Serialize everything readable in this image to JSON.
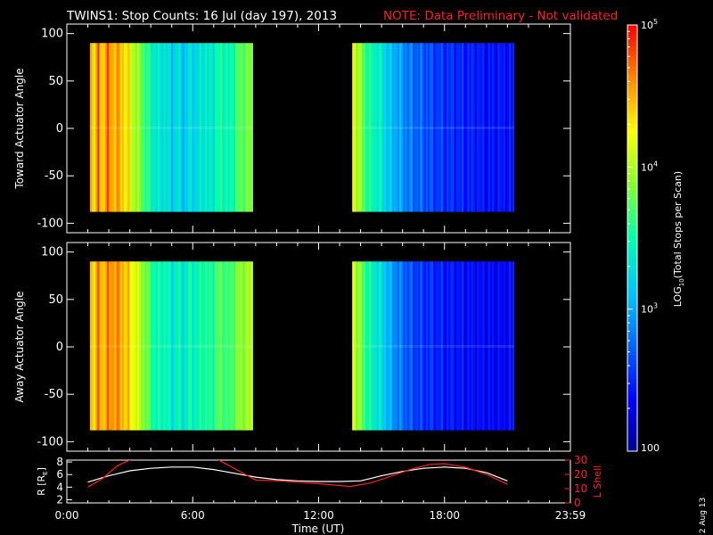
{
  "title": "TWINS1: Stop Counts: 16 Jul (day 197), 2013",
  "note": "NOTE: Data Preliminary - Not validated",
  "date_stamp": "2 Aug 13",
  "colors": {
    "background": "#000000",
    "foreground": "#ffffff",
    "note": "#ff2020",
    "lshell": "#ff2020",
    "radius": "#ffffff"
  },
  "colorbar": {
    "label": "LOG10(Total Stops per Scan)",
    "label_main": "LOG",
    "label_sub": "10",
    "label_rest": "(Total Stops per Scan)",
    "tick_labels": [
      "100",
      "10",
      "3",
      "10",
      "4",
      "10",
      "5"
    ],
    "ticks": [
      {
        "base": "100",
        "exp": ""
      },
      {
        "base": "10",
        "exp": "3"
      },
      {
        "base": "10",
        "exp": "4"
      },
      {
        "base": "10",
        "exp": "5"
      }
    ],
    "log_range": [
      2,
      5
    ],
    "colormap": "rainbow (blue-cyan-green-yellow-red)"
  },
  "xaxis": {
    "label": "Time (UT)",
    "tick_labels": [
      "0:00",
      "6:00",
      "12:00",
      "18:00",
      "23:59"
    ],
    "range_hours": [
      0,
      24
    ]
  },
  "chart_data": [
    {
      "type": "heatmap",
      "name": "toward",
      "ylabel": "Toward Actuator Angle",
      "ylim": [
        -110,
        110
      ],
      "yticks": [
        "100",
        "50",
        "0",
        "-50",
        "-100"
      ],
      "angle_range": [
        -88,
        90
      ],
      "segments": [
        {
          "start_hour": 1.1,
          "end_hour": 8.85,
          "profile": [
            [
              1.1,
              4.6
            ],
            [
              1.35,
              4.2
            ],
            [
              1.5,
              4.8
            ],
            [
              1.65,
              4.3
            ],
            [
              1.9,
              4.7
            ],
            [
              2.2,
              4.5
            ],
            [
              2.5,
              4.5
            ],
            [
              2.9,
              4.3
            ],
            [
              3.2,
              4.0
            ],
            [
              3.5,
              3.85
            ],
            [
              3.8,
              3.6
            ],
            [
              4.1,
              3.4
            ],
            [
              4.4,
              3.3
            ],
            [
              4.7,
              3.35
            ],
            [
              5.0,
              3.15
            ],
            [
              5.3,
              3.3
            ],
            [
              5.6,
              3.1
            ],
            [
              5.9,
              3.3
            ],
            [
              6.2,
              3.2
            ],
            [
              6.5,
              3.4
            ],
            [
              6.8,
              3.3
            ],
            [
              7.1,
              3.45
            ],
            [
              7.4,
              3.55
            ],
            [
              7.7,
              3.4
            ],
            [
              8.0,
              3.6
            ],
            [
              8.3,
              3.75
            ],
            [
              8.6,
              3.8
            ],
            [
              8.85,
              3.85
            ]
          ]
        },
        {
          "start_hour": 13.6,
          "end_hour": 21.3,
          "profile": [
            [
              13.6,
              4.4
            ],
            [
              13.8,
              4.0
            ],
            [
              14.0,
              3.9
            ],
            [
              14.3,
              3.6
            ],
            [
              14.6,
              3.45
            ],
            [
              15.0,
              3.35
            ],
            [
              15.4,
              3.1
            ],
            [
              15.8,
              3.0
            ],
            [
              16.2,
              2.85
            ],
            [
              16.6,
              2.75
            ],
            [
              17.0,
              2.7
            ],
            [
              17.5,
              2.6
            ],
            [
              18.0,
              2.55
            ],
            [
              18.5,
              2.5
            ],
            [
              19.0,
              2.48
            ],
            [
              19.5,
              2.45
            ],
            [
              20.0,
              2.42
            ],
            [
              20.5,
              2.42
            ],
            [
              21.0,
              2.4
            ],
            [
              21.3,
              2.45
            ]
          ]
        }
      ]
    },
    {
      "type": "heatmap",
      "name": "away",
      "ylabel": "Away Actuator Angle",
      "ylim": [
        -110,
        110
      ],
      "yticks": [
        "100",
        "50",
        "0",
        "-50",
        "-100"
      ],
      "angle_range": [
        -88,
        90
      ],
      "segments": [
        {
          "start_hour": 1.1,
          "end_hour": 8.85,
          "profile": [
            [
              1.1,
              4.5
            ],
            [
              1.35,
              4.3
            ],
            [
              1.5,
              4.7
            ],
            [
              1.65,
              4.4
            ],
            [
              1.9,
              4.6
            ],
            [
              2.2,
              4.6
            ],
            [
              2.5,
              4.55
            ],
            [
              2.9,
              4.4
            ],
            [
              3.2,
              4.2
            ],
            [
              3.5,
              4.0
            ],
            [
              3.8,
              3.8
            ],
            [
              4.1,
              3.55
            ],
            [
              4.4,
              3.45
            ],
            [
              4.7,
              3.5
            ],
            [
              5.0,
              3.3
            ],
            [
              5.3,
              3.45
            ],
            [
              5.6,
              3.3
            ],
            [
              5.9,
              3.5
            ],
            [
              6.2,
              3.4
            ],
            [
              6.5,
              3.6
            ],
            [
              6.8,
              3.5
            ],
            [
              7.1,
              3.65
            ],
            [
              7.4,
              3.75
            ],
            [
              7.7,
              3.6
            ],
            [
              8.0,
              3.8
            ],
            [
              8.3,
              3.9
            ],
            [
              8.6,
              3.95
            ],
            [
              8.85,
              4.0
            ]
          ]
        },
        {
          "start_hour": 13.6,
          "end_hour": 21.3,
          "profile": [
            [
              13.6,
              4.3
            ],
            [
              13.8,
              3.95
            ],
            [
              14.0,
              3.85
            ],
            [
              14.3,
              3.55
            ],
            [
              14.6,
              3.4
            ],
            [
              15.0,
              3.25
            ],
            [
              15.4,
              3.0
            ],
            [
              15.8,
              2.85
            ],
            [
              16.2,
              2.7
            ],
            [
              16.6,
              2.6
            ],
            [
              17.0,
              2.55
            ],
            [
              17.5,
              2.5
            ],
            [
              18.0,
              2.45
            ],
            [
              18.5,
              2.42
            ],
            [
              19.0,
              2.4
            ],
            [
              19.5,
              2.38
            ],
            [
              20.0,
              2.36
            ],
            [
              20.5,
              2.35
            ],
            [
              21.0,
              2.35
            ],
            [
              21.3,
              2.45
            ]
          ]
        }
      ]
    },
    {
      "type": "line",
      "name": "orbit",
      "ylabel_left": "R [RE]",
      "ylabel_left_main": "R [R",
      "ylabel_left_sub": "E",
      "ylabel_left_end": "]",
      "ylabel_right": "L Shell",
      "yticks_left": [
        "2",
        "4",
        "6",
        "8"
      ],
      "yticks_right": [
        "0",
        "10",
        "20",
        "30"
      ],
      "ylim_left": [
        1.5,
        8.3
      ],
      "ylim_right": [
        0,
        30
      ],
      "series": [
        {
          "name": "R",
          "axis": "left",
          "x": [
            1.0,
            2.0,
            3.0,
            4.0,
            5.0,
            6.0,
            7.0,
            8.0,
            9.0,
            10.0,
            11.0,
            12.0,
            13.0,
            14.0,
            15.0,
            16.0,
            17.0,
            18.0,
            19.0,
            20.0,
            21.0
          ],
          "y": [
            4.8,
            5.8,
            6.6,
            7.0,
            7.2,
            7.2,
            6.8,
            6.2,
            5.6,
            5.2,
            5.0,
            4.9,
            4.9,
            5.0,
            5.8,
            6.5,
            7.0,
            7.2,
            7.0,
            6.3,
            5.0
          ]
        },
        {
          "name": "L",
          "axis": "right",
          "x": [
            1.0,
            1.7,
            2.4,
            3.0,
            3.3,
            7.0,
            7.5,
            8.0,
            9.0,
            10.0,
            11.0,
            12.0,
            13.5,
            14.5,
            15.5,
            16.5,
            17.3,
            18.0,
            19.0,
            20.0,
            21.0
          ],
          "y": [
            11,
            17,
            26,
            30,
            32,
            32,
            28,
            24,
            16,
            15.5,
            14.5,
            13.5,
            11.5,
            14,
            19,
            24,
            27,
            27.5,
            25,
            20,
            13
          ]
        }
      ]
    }
  ]
}
